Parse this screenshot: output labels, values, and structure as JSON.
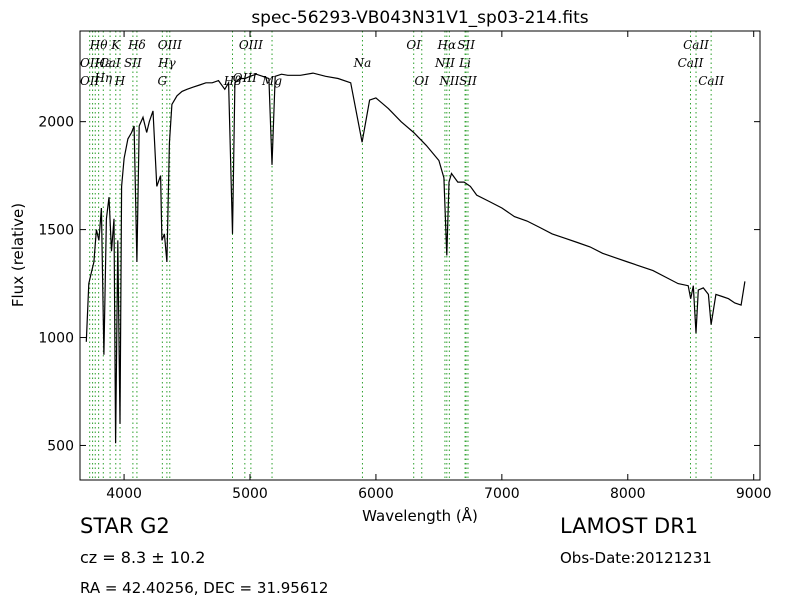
{
  "chart_data": {
    "type": "line",
    "title": "spec-56293-VB043N31V1_sp03-214.fits",
    "xlabel": "Wavelength (Å)",
    "ylabel": "Flux (relative)",
    "xlim": [
      3650,
      9050
    ],
    "ylim": [
      340,
      2420
    ],
    "xticks": [
      4000,
      5000,
      6000,
      7000,
      8000,
      9000
    ],
    "yticks": [
      500,
      1000,
      1500,
      2000
    ],
    "line_color": "#000000",
    "marker_color": "#2ca02c",
    "grid": false,
    "legend": "none",
    "series": [
      {
        "x": [
          3700,
          3720,
          3740,
          3760,
          3780,
          3800,
          3820,
          3840,
          3860,
          3880,
          3900,
          3920,
          3933,
          3950,
          3968,
          3980,
          4000,
          4030,
          4060,
          4080,
          4102,
          4120,
          4150,
          4180,
          4200,
          4230,
          4260,
          4290,
          4300,
          4320,
          4340,
          4360,
          4380,
          4420,
          4460,
          4500,
          4550,
          4600,
          4650,
          4700,
          4750,
          4800,
          4830,
          4861,
          4880,
          4920,
          4960,
          5000,
          5050,
          5100,
          5150,
          5175,
          5200,
          5250,
          5300,
          5400,
          5500,
          5600,
          5700,
          5800,
          5890,
          5950,
          6000,
          6100,
          6200,
          6300,
          6400,
          6500,
          6540,
          6563,
          6580,
          6600,
          6650,
          6700,
          6750,
          6800,
          6900,
          7000,
          7100,
          7200,
          7300,
          7400,
          7500,
          7600,
          7700,
          7800,
          7900,
          8000,
          8100,
          8200,
          8300,
          8400,
          8480,
          8500,
          8520,
          8542,
          8560,
          8600,
          8640,
          8662,
          8700,
          8750,
          8800,
          8850,
          8900,
          8930
        ],
        "y": [
          980,
          1250,
          1300,
          1350,
          1500,
          1450,
          1600,
          920,
          1550,
          1650,
          1400,
          1550,
          510,
          1450,
          600,
          1700,
          1830,
          1920,
          1950,
          1980,
          1350,
          1980,
          2020,
          1950,
          2000,
          2050,
          1700,
          1750,
          1450,
          1480,
          1350,
          1900,
          2080,
          2120,
          2140,
          2150,
          2160,
          2170,
          2180,
          2180,
          2190,
          2150,
          2180,
          1480,
          2180,
          2200,
          2200,
          2210,
          2220,
          2210,
          2200,
          1800,
          2210,
          2220,
          2215,
          2215,
          2225,
          2210,
          2200,
          2180,
          1905,
          2100,
          2110,
          2060,
          2000,
          1950,
          1890,
          1820,
          1740,
          1380,
          1720,
          1760,
          1720,
          1720,
          1700,
          1660,
          1630,
          1600,
          1560,
          1540,
          1510,
          1480,
          1460,
          1440,
          1420,
          1390,
          1370,
          1350,
          1330,
          1310,
          1280,
          1250,
          1240,
          1180,
          1240,
          1020,
          1220,
          1230,
          1200,
          1060,
          1200,
          1190,
          1180,
          1160,
          1150,
          1260
        ]
      }
    ],
    "line_labels": [
      {
        "text": "Hθ",
        "wl": 3798,
        "row": 0
      },
      {
        "text": "K",
        "wl": 3934,
        "row": 0
      },
      {
        "text": "Hδ",
        "wl": 4102,
        "row": 0
      },
      {
        "text": "OIII",
        "wl": 4363,
        "row": 0
      },
      {
        "text": "OIII",
        "wl": 5007,
        "row": 0
      },
      {
        "text": "OI",
        "wl": 6300,
        "row": 0
      },
      {
        "text": "Hα",
        "wl": 6563,
        "row": 0
      },
      {
        "text": "SII",
        "wl": 6716,
        "row": 0
      },
      {
        "text": "CaII",
        "wl": 8542,
        "row": 0
      },
      {
        "text": "OII",
        "wl": 3727,
        "row": 1
      },
      {
        "text": "Hε",
        "wl": 3835,
        "row": 1
      },
      {
        "text": "CaI",
        "wl": 3889,
        "row": 1
      },
      {
        "text": "SII",
        "wl": 4070,
        "row": 1
      },
      {
        "text": "Hγ",
        "wl": 4340,
        "row": 1
      },
      {
        "text": "Na",
        "wl": 5893,
        "row": 1
      },
      {
        "text": "NII",
        "wl": 6548,
        "row": 1
      },
      {
        "text": "Li",
        "wl": 6708,
        "row": 1
      },
      {
        "text": "CaII",
        "wl": 8498,
        "row": 1
      },
      {
        "text": "Hη",
        "wl": 3835,
        "row": 2
      },
      {
        "text": "OII",
        "wl": 3727,
        "row": 3
      },
      {
        "text": "H",
        "wl": 3968,
        "row": 3
      },
      {
        "text": "G",
        "wl": 4304,
        "row": 3
      },
      {
        "text": "Hβ",
        "wl": 4861,
        "row": 3
      },
      {
        "text": "OIII",
        "wl": 4959,
        "row": 2
      },
      {
        "text": "Mg",
        "wl": 5175,
        "row": 3
      },
      {
        "text": "OI",
        "wl": 6364,
        "row": 3
      },
      {
        "text": "NII",
        "wl": 6583,
        "row": 3
      },
      {
        "text": "SII",
        "wl": 6731,
        "row": 3
      },
      {
        "text": "CaII",
        "wl": 8662,
        "row": 3
      }
    ],
    "marker_lines": [
      3727,
      3750,
      3771,
      3798,
      3835,
      3889,
      3934,
      3968,
      4070,
      4102,
      4304,
      4340,
      4363,
      4861,
      4959,
      5007,
      5175,
      5893,
      6300,
      6364,
      6548,
      6563,
      6583,
      6708,
      6716,
      6731,
      8498,
      8542,
      8662
    ]
  },
  "info": {
    "class": "STAR   G2",
    "survey": "LAMOST DR1",
    "cz": "cz = 8.3 ± 10.2",
    "obs_date": "Obs-Date:20121231",
    "radec": "RA = 42.40256, DEC = 31.95612"
  }
}
